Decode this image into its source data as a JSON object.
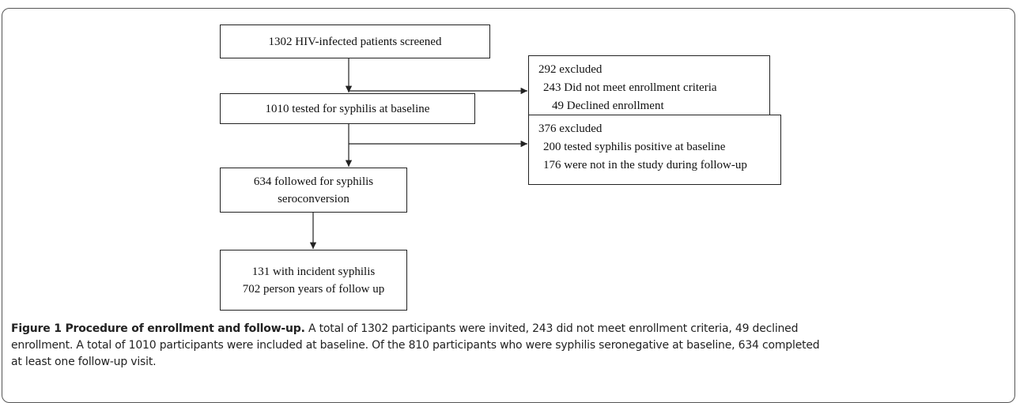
{
  "nodes": [
    {
      "lines": [
        "1302 HIV-infected patients screened"
      ]
    },
    {
      "lines": [
        "292 excluded",
        "243 Did not meet enrollment criteria",
        "49 Declined enrollment"
      ]
    },
    {
      "lines": [
        "1010 tested for syphilis at baseline"
      ]
    },
    {
      "lines": [
        "376 excluded",
        "200 tested syphilis positive at baseline",
        "176 were not in the study during follow-up"
      ]
    },
    {
      "lines": [
        "634 followed for syphilis",
        "seroconversion"
      ]
    },
    {
      "lines": [
        "131 with incident syphilis",
        "702 person years of follow up"
      ]
    }
  ],
  "caption": {
    "label": "Figure 1 Procedure of enrollment and follow-up.",
    "lines": [
      "A total of 1302 participants were invited, 243 did not meet enrollment criteria, 49 declined",
      "enrollment. A total of 1010 participants were included at baseline. Of the 810 participants who were syphilis seronegative at baseline, 634 completed",
      "at least one follow-up visit."
    ]
  }
}
